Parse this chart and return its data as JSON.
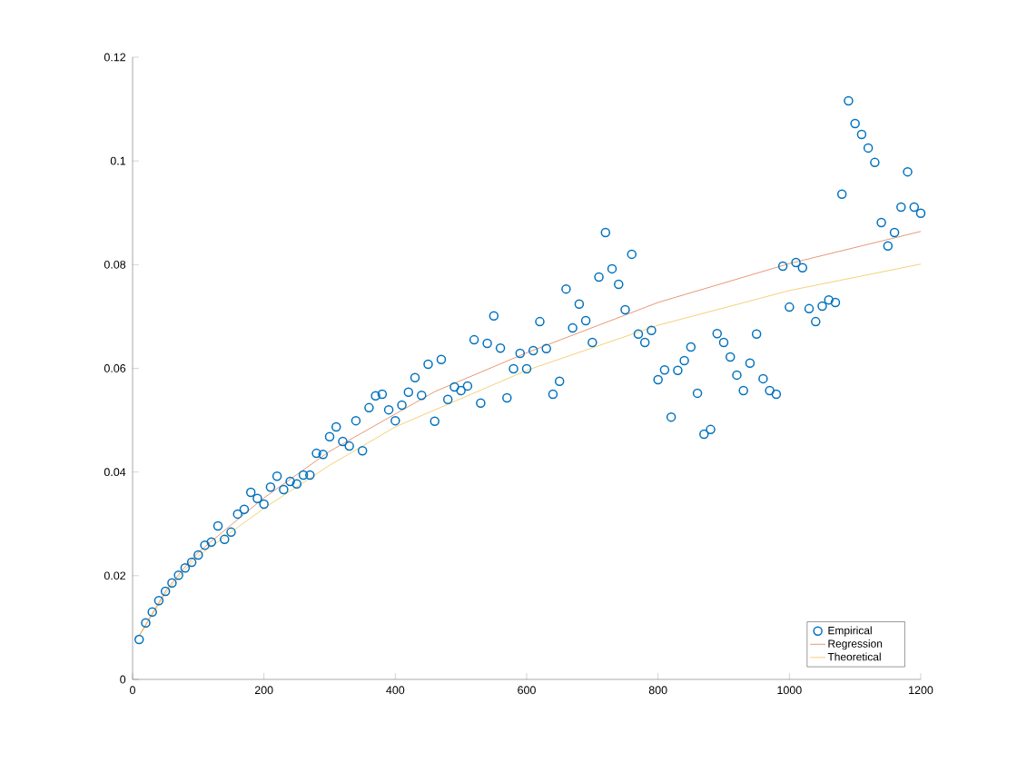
{
  "chart_data": {
    "type": "scatter",
    "xlim": [
      0,
      1200
    ],
    "ylim": [
      0,
      0.12
    ],
    "xticks": [
      0,
      200,
      400,
      600,
      800,
      1000,
      1200
    ],
    "yticks": [
      0,
      0.02,
      0.04,
      0.06,
      0.08,
      0.1,
      0.12
    ],
    "grid": false,
    "legend": "bottom right",
    "series": [
      {
        "name": "Empirical",
        "marker": "circle",
        "color": "#0072bd",
        "x": [
          10,
          20,
          30,
          40,
          50,
          60,
          70,
          80,
          90,
          100,
          110,
          120,
          130,
          140,
          150,
          160,
          170,
          180,
          190,
          200,
          210,
          220,
          230,
          240,
          250,
          260,
          270,
          280,
          290,
          300,
          310,
          320,
          330,
          340,
          350,
          360,
          370,
          380,
          390,
          400,
          410,
          420,
          430,
          440,
          450,
          460,
          470,
          480,
          490,
          500,
          510,
          520,
          530,
          540,
          550,
          560,
          570,
          580,
          590,
          600,
          610,
          620,
          630,
          640,
          650,
          660,
          670,
          680,
          690,
          700,
          710,
          720,
          730,
          740,
          750,
          760,
          770,
          780,
          790,
          800,
          810,
          820,
          830,
          840,
          850,
          860,
          870,
          880,
          890,
          900,
          910,
          920,
          930,
          940,
          950,
          960,
          970,
          980,
          990,
          1000,
          1010,
          1020,
          1030,
          1040,
          1050,
          1060,
          1070,
          1080,
          1090,
          1100,
          1110,
          1120,
          1130,
          1140,
          1150,
          1160,
          1170,
          1180,
          1190,
          1200
        ],
        "values": [
          0.0077,
          0.0109,
          0.013,
          0.0152,
          0.017,
          0.0186,
          0.0201,
          0.0215,
          0.0226,
          0.024,
          0.0259,
          0.0265,
          0.0296,
          0.027,
          0.0284,
          0.0319,
          0.0328,
          0.0361,
          0.0349,
          0.0338,
          0.0371,
          0.0392,
          0.0366,
          0.0382,
          0.0377,
          0.0394,
          0.0394,
          0.0436,
          0.0434,
          0.0468,
          0.0487,
          0.0459,
          0.045,
          0.0499,
          0.0441,
          0.0524,
          0.0547,
          0.055,
          0.052,
          0.0499,
          0.0529,
          0.0554,
          0.0582,
          0.0548,
          0.0608,
          0.0498,
          0.0617,
          0.054,
          0.0564,
          0.0557,
          0.0566,
          0.0655,
          0.0533,
          0.0648,
          0.0701,
          0.0639,
          0.0543,
          0.0599,
          0.0629,
          0.0599,
          0.0634,
          0.069,
          0.0638,
          0.055,
          0.0575,
          0.0753,
          0.0678,
          0.0724,
          0.0692,
          0.065,
          0.0776,
          0.0862,
          0.0792,
          0.0762,
          0.0713,
          0.082,
          0.0666,
          0.065,
          0.0673,
          0.0578,
          0.0597,
          0.0506,
          0.0596,
          0.0615,
          0.0641,
          0.0552,
          0.0473,
          0.0482,
          0.0667,
          0.065,
          0.0622,
          0.0587,
          0.0557,
          0.061,
          0.0666,
          0.058,
          0.0557,
          0.055,
          0.0797,
          0.0718,
          0.0804,
          0.0794,
          0.0715,
          0.069,
          0.072,
          0.0732,
          0.0727,
          0.0936,
          0.1116,
          0.1072,
          0.1051,
          0.1025,
          0.0997,
          0.0881,
          0.0836,
          0.0862,
          0.0911,
          0.0979,
          0.0911,
          0.0899
        ]
      },
      {
        "name": "Regression",
        "type": "line",
        "marker": "none",
        "color": "#d95319",
        "x": [
          10,
          50,
          75,
          100,
          150,
          200,
          300,
          460,
          600,
          800,
          1000,
          1200
        ],
        "values": [
          0.0084,
          0.017,
          0.021,
          0.0245,
          0.0298,
          0.035,
          0.044,
          0.0555,
          0.063,
          0.0727,
          0.0802,
          0.0864
        ]
      },
      {
        "name": "Theoretical",
        "type": "line",
        "marker": "none",
        "color": "#edb120",
        "x": [
          10,
          50,
          75,
          100,
          150,
          200,
          300,
          400,
          600,
          800,
          1000,
          1200
        ],
        "values": [
          0.0084,
          0.0165,
          0.0205,
          0.0238,
          0.0284,
          0.033,
          0.0413,
          0.0487,
          0.0596,
          0.0683,
          0.075,
          0.0801
        ]
      }
    ]
  }
}
